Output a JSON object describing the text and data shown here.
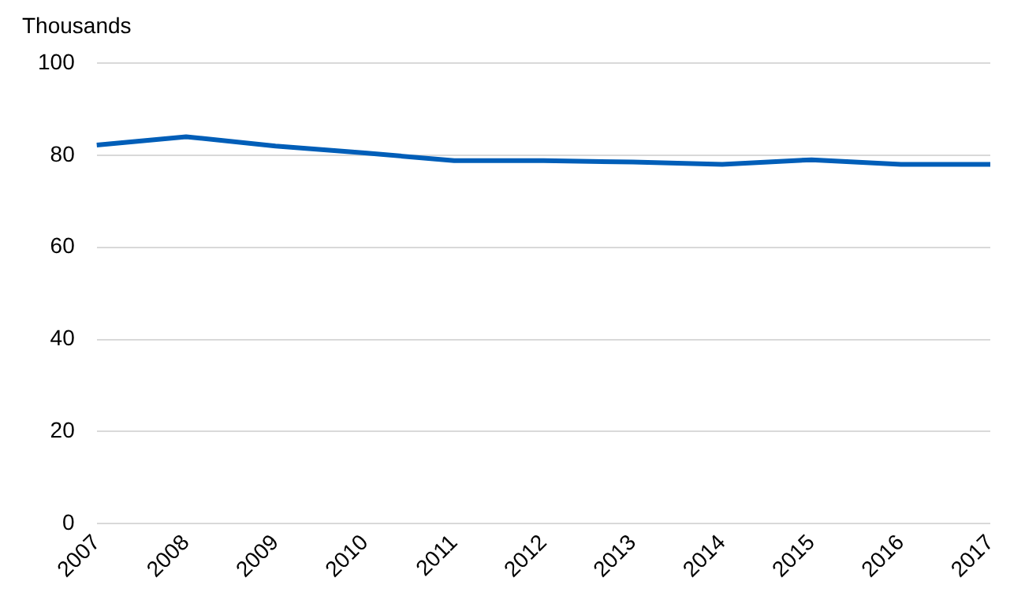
{
  "chart_data": {
    "type": "line",
    "ylabel": "Thousands",
    "categories": [
      "2007",
      "2008",
      "2009",
      "2010",
      "2011",
      "2012",
      "2013",
      "2014",
      "2015",
      "2016",
      "2017"
    ],
    "series": [
      {
        "color": "#005eb8",
        "values": [
          82.2,
          84,
          82,
          80.5,
          78.8,
          78.8,
          78.5,
          78,
          79,
          78,
          78
        ]
      }
    ],
    "ylim": [
      0,
      100
    ],
    "yticks": [
      0,
      20,
      40,
      60,
      80,
      100
    ],
    "grid": "y",
    "legend": false,
    "marker": "none"
  }
}
